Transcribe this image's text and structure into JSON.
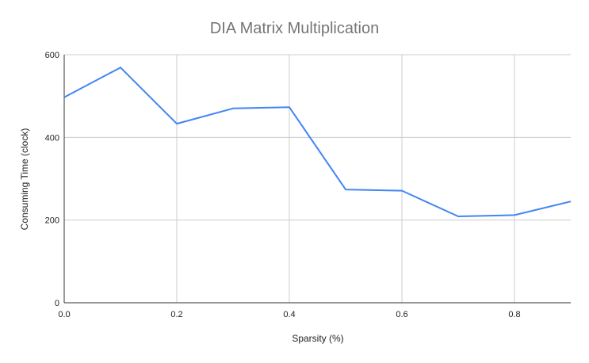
{
  "chart_data": {
    "type": "line",
    "title": "DIA Matrix Multiplication",
    "xlabel": "Sparsity (%)",
    "ylabel": "Consuming Time (clock)",
    "xlim": [
      0,
      0.9
    ],
    "ylim": [
      0,
      600
    ],
    "x_ticks": [
      "0.0",
      "0.2",
      "0.4",
      "0.6",
      "0.8"
    ],
    "x_tick_values": [
      0,
      0.2,
      0.4,
      0.6,
      0.8
    ],
    "y_ticks": [
      "0",
      "200",
      "400",
      "600"
    ],
    "y_tick_values": [
      0,
      200,
      400,
      600
    ],
    "grid": true,
    "legend": "none",
    "series": [
      {
        "color": "#4285f4",
        "x": [
          0.0,
          0.1,
          0.2,
          0.3,
          0.4,
          0.5,
          0.6,
          0.7,
          0.8,
          0.9
        ],
        "y": [
          497,
          569,
          433,
          470,
          473,
          274,
          271,
          209,
          212,
          245
        ]
      }
    ]
  }
}
